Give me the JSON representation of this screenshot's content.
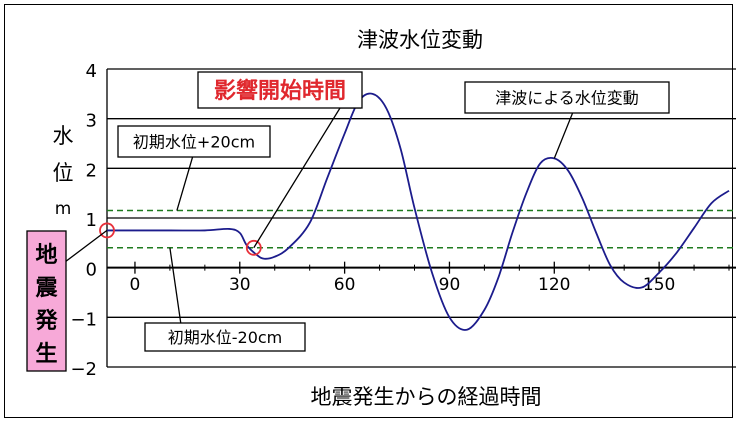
{
  "chart_data": {
    "type": "line",
    "title": "津波水位変動",
    "xlabel": "地震発生からの経過時間",
    "ylabel": [
      "水",
      "位",
      "m"
    ],
    "xlim": [
      -8,
      172
    ],
    "ylim": [
      -2,
      4
    ],
    "y_ticks": [
      4,
      3,
      2,
      1,
      0,
      -1,
      -2
    ],
    "x_ticks": [
      0,
      30,
      60,
      90,
      120,
      150
    ],
    "grid": "horizontal",
    "baseline_level": 0.75,
    "thresholds": [
      {
        "label": "初期水位+20cm",
        "value": 1.15
      },
      {
        "label": "初期水位-20cm",
        "value": 0.4
      }
    ],
    "series": [
      {
        "name": "津波による水位変動",
        "color": "#1c1c8c",
        "x": [
          -8,
          0,
          10,
          20,
          27,
          30,
          32,
          35,
          37,
          40,
          44,
          50,
          55,
          60,
          64,
          68,
          72,
          76,
          80,
          85,
          90,
          95,
          100,
          104,
          108,
          112,
          116,
          120,
          124,
          128,
          132,
          136,
          140,
          145,
          150,
          155,
          160,
          165,
          170
        ],
        "y": [
          0.75,
          0.75,
          0.75,
          0.75,
          0.78,
          0.7,
          0.45,
          0.25,
          0.18,
          0.22,
          0.4,
          0.9,
          1.8,
          2.7,
          3.35,
          3.5,
          3.2,
          2.4,
          1.2,
          -0.1,
          -1.0,
          -1.25,
          -0.85,
          -0.2,
          0.7,
          1.5,
          2.1,
          2.2,
          1.95,
          1.4,
          0.7,
          0.05,
          -0.3,
          -0.4,
          -0.1,
          0.3,
          0.8,
          1.3,
          1.55
        ]
      }
    ],
    "markers": [
      {
        "x": -8,
        "y": 0.75,
        "color": "#e8303a"
      },
      {
        "x": 34,
        "y": 0.4,
        "color": "#e8303a"
      }
    ],
    "annotations": {
      "impact_start": "影響開始時間",
      "tsunami_change": "津波による水位変動",
      "earthquake": [
        "地",
        "震",
        "発",
        "生"
      ]
    }
  }
}
